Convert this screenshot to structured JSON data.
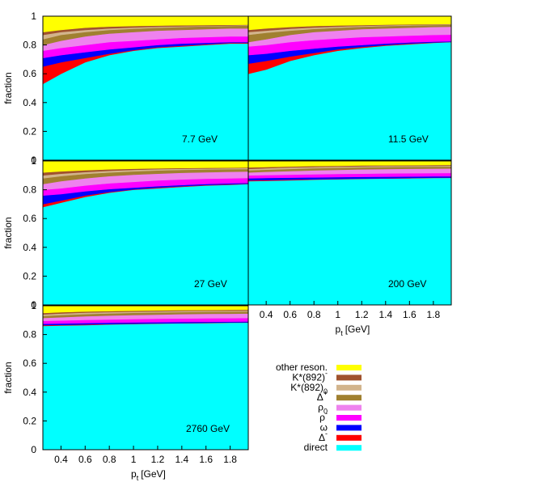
{
  "chart_data": {
    "type": "area",
    "stacked": true,
    "ylabel": "fraction",
    "xlabel_main": "p",
    "xlabel_sub": "t",
    "xlabel_unit": "[GeV]",
    "xlim": [
      0.25,
      1.95
    ],
    "ylim": [
      0,
      1
    ],
    "grid": false,
    "legend_position": "bottom-right",
    "x_ticks": [
      "0.4",
      "0.6",
      "0.8",
      "1",
      "1.2",
      "1.4",
      "1.6",
      "1.8"
    ],
    "y_ticks": [
      "0",
      "0.2",
      "0.4",
      "0.6",
      "0.8",
      "1"
    ],
    "x": [
      0.25,
      0.4,
      0.6,
      0.8,
      1.0,
      1.2,
      1.4,
      1.6,
      1.8,
      1.95
    ],
    "legend": [
      {
        "key": "other",
        "main": "other reson.",
        "sup": "",
        "sub": "",
        "color": "#ffff00"
      },
      {
        "key": "kstar_minus",
        "main": "K*(892)",
        "sup": "-",
        "sub": "",
        "color": "#a0522d"
      },
      {
        "key": "kstar_zero",
        "main": "K*(892)",
        "sup": "",
        "sub": "0",
        "color": "#d2b48c"
      },
      {
        "key": "delta_plus",
        "main": "Δ",
        "sup": "+",
        "sub": "",
        "color": "#a08030"
      },
      {
        "key": "rho_zero",
        "main": "ρ",
        "sup": "",
        "sub": "0",
        "color": "#ee82ee"
      },
      {
        "key": "rho_minus",
        "main": "ρ",
        "sup": "-",
        "sub": "",
        "color": "#ff00ff"
      },
      {
        "key": "omega",
        "main": "ω",
        "sup": "",
        "sub": "",
        "color": "#0000ff"
      },
      {
        "key": "delta_minus",
        "main": "Δ",
        "sup": "-",
        "sub": "",
        "color": "#ff0000"
      },
      {
        "key": "direct",
        "main": "direct",
        "sup": "",
        "sub": "",
        "color": "#00ffff"
      }
    ],
    "panels": [
      {
        "label": "7.7 GeV",
        "cumulative": {
          "direct": [
            0.53,
            0.6,
            0.68,
            0.73,
            0.76,
            0.78,
            0.79,
            0.8,
            0.81,
            0.81
          ],
          "delta_minus": [
            0.65,
            0.68,
            0.71,
            0.74,
            0.765,
            0.785,
            0.795,
            0.805,
            0.815,
            0.815
          ],
          "omega": [
            0.71,
            0.73,
            0.75,
            0.77,
            0.785,
            0.8,
            0.81,
            0.815,
            0.82,
            0.82
          ],
          "rho_minus": [
            0.76,
            0.78,
            0.8,
            0.82,
            0.83,
            0.84,
            0.85,
            0.855,
            0.86,
            0.86
          ],
          "rho_zero": [
            0.8,
            0.83,
            0.86,
            0.88,
            0.89,
            0.9,
            0.905,
            0.91,
            0.915,
            0.915
          ],
          "delta_plus": [
            0.84,
            0.87,
            0.89,
            0.905,
            0.913,
            0.92,
            0.925,
            0.93,
            0.933,
            0.935
          ],
          "kstar_zero": [
            0.87,
            0.89,
            0.905,
            0.915,
            0.922,
            0.927,
            0.93,
            0.933,
            0.936,
            0.938
          ],
          "kstar_minus": [
            0.89,
            0.905,
            0.92,
            0.928,
            0.932,
            0.935,
            0.937,
            0.939,
            0.94,
            0.941
          ],
          "other": [
            1,
            1,
            1,
            1,
            1,
            1,
            1,
            1,
            1,
            1
          ]
        }
      },
      {
        "label": "11.5 GeV",
        "cumulative": {
          "direct": [
            0.6,
            0.63,
            0.69,
            0.73,
            0.76,
            0.78,
            0.795,
            0.805,
            0.815,
            0.82
          ],
          "delta_minus": [
            0.67,
            0.69,
            0.72,
            0.745,
            0.77,
            0.787,
            0.8,
            0.81,
            0.818,
            0.822
          ],
          "omega": [
            0.73,
            0.74,
            0.76,
            0.775,
            0.79,
            0.8,
            0.81,
            0.818,
            0.823,
            0.826
          ],
          "rho_minus": [
            0.79,
            0.8,
            0.82,
            0.835,
            0.845,
            0.855,
            0.86,
            0.865,
            0.87,
            0.872
          ],
          "rho_zero": [
            0.82,
            0.84,
            0.87,
            0.89,
            0.9,
            0.91,
            0.915,
            0.92,
            0.925,
            0.927
          ],
          "delta_plus": [
            0.87,
            0.885,
            0.9,
            0.912,
            0.92,
            0.927,
            0.932,
            0.936,
            0.939,
            0.94
          ],
          "kstar_zero": [
            0.89,
            0.9,
            0.913,
            0.922,
            0.928,
            0.933,
            0.937,
            0.94,
            0.942,
            0.943
          ],
          "kstar_minus": [
            0.905,
            0.915,
            0.925,
            0.932,
            0.936,
            0.939,
            0.941,
            0.943,
            0.945,
            0.946
          ],
          "other": [
            1,
            1,
            1,
            1,
            1,
            1,
            1,
            1,
            1,
            1
          ]
        }
      },
      {
        "label": "27 GeV",
        "cumulative": {
          "direct": [
            0.68,
            0.71,
            0.75,
            0.78,
            0.8,
            0.81,
            0.82,
            0.83,
            0.835,
            0.84
          ],
          "delta_minus": [
            0.7,
            0.725,
            0.76,
            0.785,
            0.803,
            0.815,
            0.825,
            0.833,
            0.838,
            0.842
          ],
          "omega": [
            0.76,
            0.77,
            0.79,
            0.805,
            0.815,
            0.825,
            0.833,
            0.84,
            0.845,
            0.848
          ],
          "rho_minus": [
            0.8,
            0.81,
            0.83,
            0.845,
            0.855,
            0.865,
            0.872,
            0.877,
            0.88,
            0.882
          ],
          "rho_zero": [
            0.84,
            0.86,
            0.88,
            0.895,
            0.905,
            0.912,
            0.918,
            0.922,
            0.925,
            0.927
          ],
          "delta_plus": [
            0.88,
            0.895,
            0.91,
            0.92,
            0.928,
            0.934,
            0.938,
            0.941,
            0.943,
            0.944
          ],
          "kstar_zero": [
            0.9,
            0.912,
            0.923,
            0.932,
            0.938,
            0.943,
            0.946,
            0.948,
            0.95,
            0.951
          ],
          "kstar_minus": [
            0.92,
            0.928,
            0.936,
            0.942,
            0.946,
            0.949,
            0.951,
            0.953,
            0.954,
            0.955
          ],
          "other": [
            1,
            1,
            1,
            1,
            1,
            1,
            1,
            1,
            1,
            1
          ]
        }
      },
      {
        "label": "200 GeV",
        "cumulative": {
          "direct": [
            0.86,
            0.862,
            0.866,
            0.87,
            0.873,
            0.876,
            0.878,
            0.88,
            0.882,
            0.883
          ],
          "delta_minus": [
            0.865,
            0.867,
            0.87,
            0.873,
            0.876,
            0.878,
            0.88,
            0.882,
            0.884,
            0.885
          ],
          "omega": [
            0.88,
            0.882,
            0.884,
            0.886,
            0.888,
            0.89,
            0.891,
            0.892,
            0.893,
            0.894
          ],
          "rho_minus": [
            0.9,
            0.902,
            0.905,
            0.908,
            0.91,
            0.912,
            0.914,
            0.915,
            0.916,
            0.917
          ],
          "rho_zero": [
            0.92,
            0.925,
            0.93,
            0.935,
            0.939,
            0.942,
            0.944,
            0.946,
            0.947,
            0.948
          ],
          "delta_plus": [
            0.935,
            0.94,
            0.945,
            0.95,
            0.953,
            0.956,
            0.958,
            0.96,
            0.961,
            0.962
          ],
          "kstar_zero": [
            0.945,
            0.95,
            0.955,
            0.958,
            0.961,
            0.963,
            0.965,
            0.966,
            0.967,
            0.968
          ],
          "kstar_minus": [
            0.955,
            0.958,
            0.962,
            0.965,
            0.967,
            0.969,
            0.97,
            0.971,
            0.972,
            0.973
          ],
          "other": [
            1,
            1,
            1,
            1,
            1,
            1,
            1,
            1,
            1,
            1
          ]
        }
      },
      {
        "label": "2760 GeV",
        "cumulative": {
          "direct": [
            0.86,
            0.863,
            0.866,
            0.87,
            0.873,
            0.876,
            0.878,
            0.88,
            0.882,
            0.883
          ],
          "delta_minus": [
            0.865,
            0.867,
            0.87,
            0.873,
            0.876,
            0.878,
            0.88,
            0.882,
            0.884,
            0.885
          ],
          "omega": [
            0.875,
            0.877,
            0.88,
            0.882,
            0.884,
            0.886,
            0.888,
            0.889,
            0.89,
            0.891
          ],
          "rho_minus": [
            0.895,
            0.898,
            0.902,
            0.905,
            0.908,
            0.91,
            0.912,
            0.913,
            0.914,
            0.915
          ],
          "rho_zero": [
            0.915,
            0.92,
            0.927,
            0.932,
            0.936,
            0.939,
            0.942,
            0.944,
            0.945,
            0.946
          ],
          "delta_plus": [
            0.93,
            0.936,
            0.942,
            0.947,
            0.951,
            0.954,
            0.956,
            0.958,
            0.959,
            0.96
          ],
          "kstar_zero": [
            0.94,
            0.946,
            0.952,
            0.956,
            0.959,
            0.962,
            0.964,
            0.965,
            0.966,
            0.967
          ],
          "kstar_minus": [
            0.95,
            0.955,
            0.96,
            0.963,
            0.966,
            0.968,
            0.97,
            0.971,
            0.972,
            0.973
          ],
          "other": [
            1,
            1,
            1,
            1,
            1,
            1,
            1,
            1,
            1,
            1
          ]
        }
      }
    ]
  }
}
